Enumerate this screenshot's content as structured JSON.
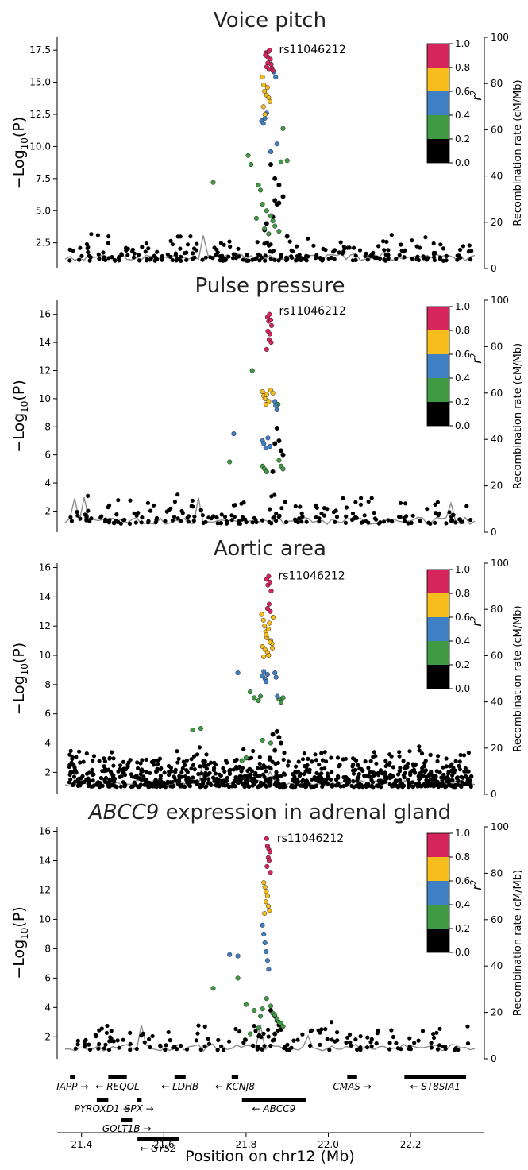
{
  "figure": {
    "xlabel": "Position on chr12 (Mb)",
    "left_label_prefix": "−Log",
    "left_label_sub": "10",
    "left_label_suffix": "(P)",
    "right_label": "Recombination rate (cM/Mb)",
    "r2_label": "r",
    "r2_sup": "2",
    "x_ticks": [
      "21.4",
      "21.6",
      "21.8",
      "22.0",
      "22.2"
    ],
    "xlim": [
      21.36,
      22.36
    ],
    "colorbar_ticks": [
      "1.0",
      "0.8",
      "0.6",
      "0.4",
      "0.2",
      "0.0"
    ],
    "right_ticks": [
      "0",
      "20",
      "40",
      "60",
      "80",
      "100"
    ],
    "colors": {
      "r2_0.8_1.0": "#d6245d",
      "r2_0.6_0.8": "#f6bd1c",
      "r2_0.4_0.6": "#3f7fc4",
      "r2_0.2_0.4": "#3f9a43",
      "r2_0.0_0.2": "#000000",
      "recombination": "#8c8c8c"
    }
  },
  "chart_data": [
    {
      "type": "scatter",
      "title": "Voice pitch",
      "title_italic": "",
      "lead_snp": "rs11046212",
      "y_ticks": [
        "2.5",
        "5.0",
        "7.5",
        "10.0",
        "12.5",
        "15.0",
        "17.5"
      ],
      "ylim": [
        0.5,
        18.5
      ],
      "lead_value": 17.5,
      "lead_position": 21.857,
      "series": [
        {
          "name": "0.8–1.0",
          "x": [
            21.848,
            21.852,
            21.855,
            21.857,
            21.859,
            21.861,
            21.853,
            21.85,
            21.863,
            21.847,
            21.856,
            21.865
          ],
          "y": [
            17.3,
            17.0,
            17.4,
            17.5,
            16.8,
            16.4,
            16.5,
            16.2,
            16.1,
            17.1,
            16.0,
            15.9
          ]
        },
        {
          "name": "0.6–0.8",
          "x": [
            21.84,
            21.843,
            21.845,
            21.85,
            21.855,
            21.858,
            21.842,
            21.846,
            21.852
          ],
          "y": [
            15.4,
            14.8,
            14.3,
            14.0,
            13.8,
            13.5,
            13.1,
            12.5,
            14.6
          ]
        },
        {
          "name": "0.4–0.6",
          "x": [
            21.838,
            21.842,
            21.846,
            21.85,
            21.868,
            21.872,
            21.875,
            21.86
          ],
          "y": [
            12.0,
            11.8,
            12.2,
            12.6,
            15.8,
            15.4,
            10.2,
            9.6
          ]
        },
        {
          "name": "0.2–0.4",
          "x": [
            21.72,
            21.805,
            21.812,
            21.83,
            21.835,
            21.84,
            21.85,
            21.86,
            21.865,
            21.87,
            21.88,
            21.885,
            21.89,
            21.9,
            21.845,
            21.855,
            21.825
          ],
          "y": [
            7.2,
            9.3,
            8.6,
            7.0,
            6.6,
            5.5,
            5.0,
            4.6,
            4.2,
            3.8,
            3.4,
            8.8,
            11.4,
            8.9,
            3.6,
            3.2,
            4.4
          ]
        },
        {
          "name": "0.0–0.2",
          "x": [
            21.86,
            21.87,
            21.88,
            21.875,
            21.865,
            21.85,
            21.845,
            21.89,
            21.88,
            21.87,
            21.9
          ],
          "y": [
            8.6,
            7.5,
            5.6,
            5.5,
            4.5,
            4.0,
            3.5,
            6.1,
            7.0,
            5.8,
            3.0
          ]
        }
      ]
    },
    {
      "type": "scatter",
      "title": "Pulse pressure",
      "title_italic": "",
      "lead_snp": "rs11046212",
      "y_ticks": [
        "2",
        "4",
        "6",
        "8",
        "10",
        "12",
        "14",
        "16"
      ],
      "ylim": [
        0.5,
        17.0
      ],
      "lead_value": 16.2,
      "lead_position": 21.857,
      "series": [
        {
          "name": "0.8–1.0",
          "x": [
            21.852,
            21.855,
            21.857,
            21.86,
            21.862,
            21.858,
            21.853,
            21.856,
            21.861,
            21.85
          ],
          "y": [
            15.8,
            15.5,
            16.0,
            15.6,
            15.2,
            14.6,
            14.8,
            14.2,
            14.0,
            13.5
          ]
        },
        {
          "name": "0.6–0.8",
          "x": [
            21.84,
            21.843,
            21.846,
            21.85,
            21.855,
            21.86,
            21.865,
            21.848
          ],
          "y": [
            10.5,
            10.2,
            10.0,
            10.3,
            9.8,
            10.6,
            10.4,
            9.6
          ]
        },
        {
          "name": "0.4–0.6",
          "x": [
            21.77,
            21.84,
            21.843,
            21.848,
            21.853,
            21.858,
            21.87,
            21.872,
            21.875
          ],
          "y": [
            7.5,
            7.0,
            6.8,
            6.5,
            7.2,
            6.6,
            9.8,
            9.5,
            9.2
          ]
        },
        {
          "name": "0.2–0.4",
          "x": [
            21.815,
            21.76,
            21.84,
            21.845,
            21.85,
            21.88,
            21.885,
            21.89,
            21.878
          ],
          "y": [
            12.0,
            5.5,
            5.2,
            5.0,
            4.8,
            5.6,
            5.2,
            5.0,
            9.6
          ]
        },
        {
          "name": "0.0–0.2",
          "x": [
            21.875,
            21.88,
            21.885,
            21.87,
            21.865,
            21.89
          ],
          "y": [
            7.9,
            7.0,
            6.3,
            6.8,
            4.8,
            6.0
          ]
        }
      ]
    },
    {
      "type": "scatter",
      "title": "Aortic area",
      "title_italic": "",
      "lead_snp": "rs11046212",
      "y_ticks": [
        "2",
        "4",
        "6",
        "8",
        "10",
        "12",
        "14",
        "16"
      ],
      "ylim": [
        0.5,
        16.3
      ],
      "lead_value": 15.4,
      "lead_position": 21.855,
      "series": [
        {
          "name": "0.8–1.0",
          "x": [
            21.85,
            21.853,
            21.855,
            21.858,
            21.861,
            21.856,
            21.852,
            21.859
          ],
          "y": [
            15.2,
            14.8,
            15.4,
            15.0,
            14.4,
            13.5,
            13.2,
            13.0
          ]
        },
        {
          "name": "0.6–0.8",
          "x": [
            21.838,
            21.842,
            21.845,
            21.848,
            21.851,
            21.854,
            21.857,
            21.86,
            21.863,
            21.866,
            21.84,
            21.846,
            21.852,
            21.858,
            21.864,
            21.843,
            21.849,
            21.855
          ],
          "y": [
            12.8,
            12.4,
            12.0,
            11.6,
            11.2,
            11.8,
            12.2,
            11.0,
            10.8,
            12.6,
            10.6,
            10.4,
            10.2,
            10.9,
            10.5,
            9.9,
            11.4,
            10.0
          ]
        },
        {
          "name": "0.4–0.6",
          "x": [
            21.78,
            21.84,
            21.843,
            21.846,
            21.849,
            21.852,
            21.87,
            21.873,
            21.876
          ],
          "y": [
            8.8,
            8.6,
            8.9,
            8.4,
            8.2,
            8.7,
            8.8,
            8.5,
            7.2
          ]
        },
        {
          "name": "0.2–0.4",
          "x": [
            21.67,
            21.69,
            21.81,
            21.82,
            21.83,
            21.835,
            21.84,
            21.86,
            21.88,
            21.885,
            21.89,
            21.8,
            21.79
          ],
          "y": [
            4.9,
            5.0,
            7.5,
            7.1,
            6.9,
            7.2,
            4.2,
            4.0,
            7.0,
            6.8,
            7.1,
            3.0,
            2.8
          ]
        },
        {
          "name": "0.0–0.2",
          "x": [
            21.875,
            21.88,
            21.885,
            21.87,
            21.865
          ],
          "y": [
            4.8,
            4.4,
            4.0,
            3.5,
            4.6
          ]
        }
      ]
    },
    {
      "type": "scatter",
      "title": " expression in adrenal gland",
      "title_italic": "ABCC9",
      "lead_snp": "rs11046212",
      "y_ticks": [
        "2",
        "4",
        "6",
        "8",
        "10",
        "12",
        "14",
        "16"
      ],
      "ylim": [
        0.5,
        16.3
      ],
      "lead_value": 15.5,
      "lead_position": 21.852,
      "series": [
        {
          "name": "0.8–1.0",
          "x": [
            21.85,
            21.852,
            21.855,
            21.858,
            21.854,
            21.856,
            21.851,
            21.859
          ],
          "y": [
            15.5,
            15.0,
            14.8,
            14.6,
            14.2,
            14.0,
            13.6,
            13.2
          ]
        },
        {
          "name": "0.6–0.8",
          "x": [
            21.843,
            21.846,
            21.849,
            21.852,
            21.848,
            21.854,
            21.857,
            21.845
          ],
          "y": [
            12.5,
            12.2,
            11.9,
            11.6,
            11.2,
            10.9,
            10.6,
            10.4
          ]
        },
        {
          "name": "0.4–0.6",
          "x": [
            21.76,
            21.78,
            21.84,
            21.843,
            21.846,
            21.849,
            21.852,
            21.855
          ],
          "y": [
            7.6,
            7.5,
            9.6,
            9.0,
            8.4,
            7.8,
            7.2,
            6.6
          ]
        },
        {
          "name": "0.2–0.4",
          "x": [
            21.72,
            21.78,
            21.8,
            21.82,
            21.835,
            21.84,
            21.85,
            21.86,
            21.865,
            21.87,
            21.875,
            21.88,
            21.885,
            21.89,
            21.83,
            21.81
          ],
          "y": [
            5.3,
            6.0,
            4.2,
            3.8,
            3.4,
            3.9,
            4.6,
            4.1,
            3.6,
            3.5,
            3.2,
            3.0,
            2.9,
            2.7,
            2.6,
            2.2
          ]
        },
        {
          "name": "0.0–0.2",
          "x": [
            21.86,
            21.87,
            21.875,
            21.88,
            21.885,
            21.87
          ],
          "y": [
            3.8,
            3.4,
            3.1,
            2.8,
            2.5,
            2.2
          ]
        }
      ]
    }
  ],
  "genes": [
    {
      "name": "IAPP",
      "start": 21.372,
      "end": 21.384,
      "row": 0,
      "dir": "right"
    },
    {
      "name": "REQOL",
      "start": 21.465,
      "end": 21.51,
      "row": 0,
      "dir": "left"
    },
    {
      "name": "LDHB",
      "start": 21.626,
      "end": 21.653,
      "row": 0,
      "dir": "left"
    },
    {
      "name": "KCNJ8",
      "start": 21.765,
      "end": 21.781,
      "row": 0,
      "dir": "left"
    },
    {
      "name": "CMAS",
      "start": 22.046,
      "end": 22.07,
      "row": 0,
      "dir": "right"
    },
    {
      "name": "ST8SIA1",
      "start": 22.185,
      "end": 22.335,
      "row": 0,
      "dir": "left"
    },
    {
      "name": "PYROXD1",
      "start": 21.437,
      "end": 21.465,
      "row": 1,
      "dir": "right"
    },
    {
      "name": "SPX",
      "start": 21.534,
      "end": 21.546,
      "row": 1,
      "dir": "right"
    },
    {
      "name": "ABCC9",
      "start": 21.79,
      "end": 21.945,
      "row": 1,
      "dir": "left"
    },
    {
      "name": "GOLT1B",
      "start": 21.497,
      "end": 21.523,
      "row": 2,
      "dir": "right"
    },
    {
      "name": "GYS2",
      "start": 21.536,
      "end": 21.636,
      "row": 3,
      "dir": "left"
    }
  ]
}
